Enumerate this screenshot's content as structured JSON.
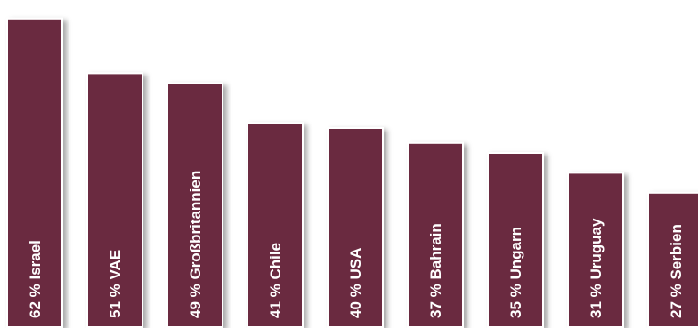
{
  "chart_data": {
    "type": "bar",
    "orientation": "vertical",
    "categories": [
      "Israel",
      "VAE",
      "Großbritannien",
      "Chile",
      "USA",
      "Bahrain",
      "Ungarn",
      "Uruguay",
      "Serbien"
    ],
    "values": [
      62,
      51,
      49,
      41,
      40,
      37,
      35,
      31,
      27
    ],
    "value_suffix": " %",
    "ylim": [
      0,
      64
    ],
    "grid": false,
    "legend": "none",
    "colors": {
      "bar": "#6b2a3f",
      "bar_border": "#ffffff",
      "label": "#ffffff"
    }
  }
}
